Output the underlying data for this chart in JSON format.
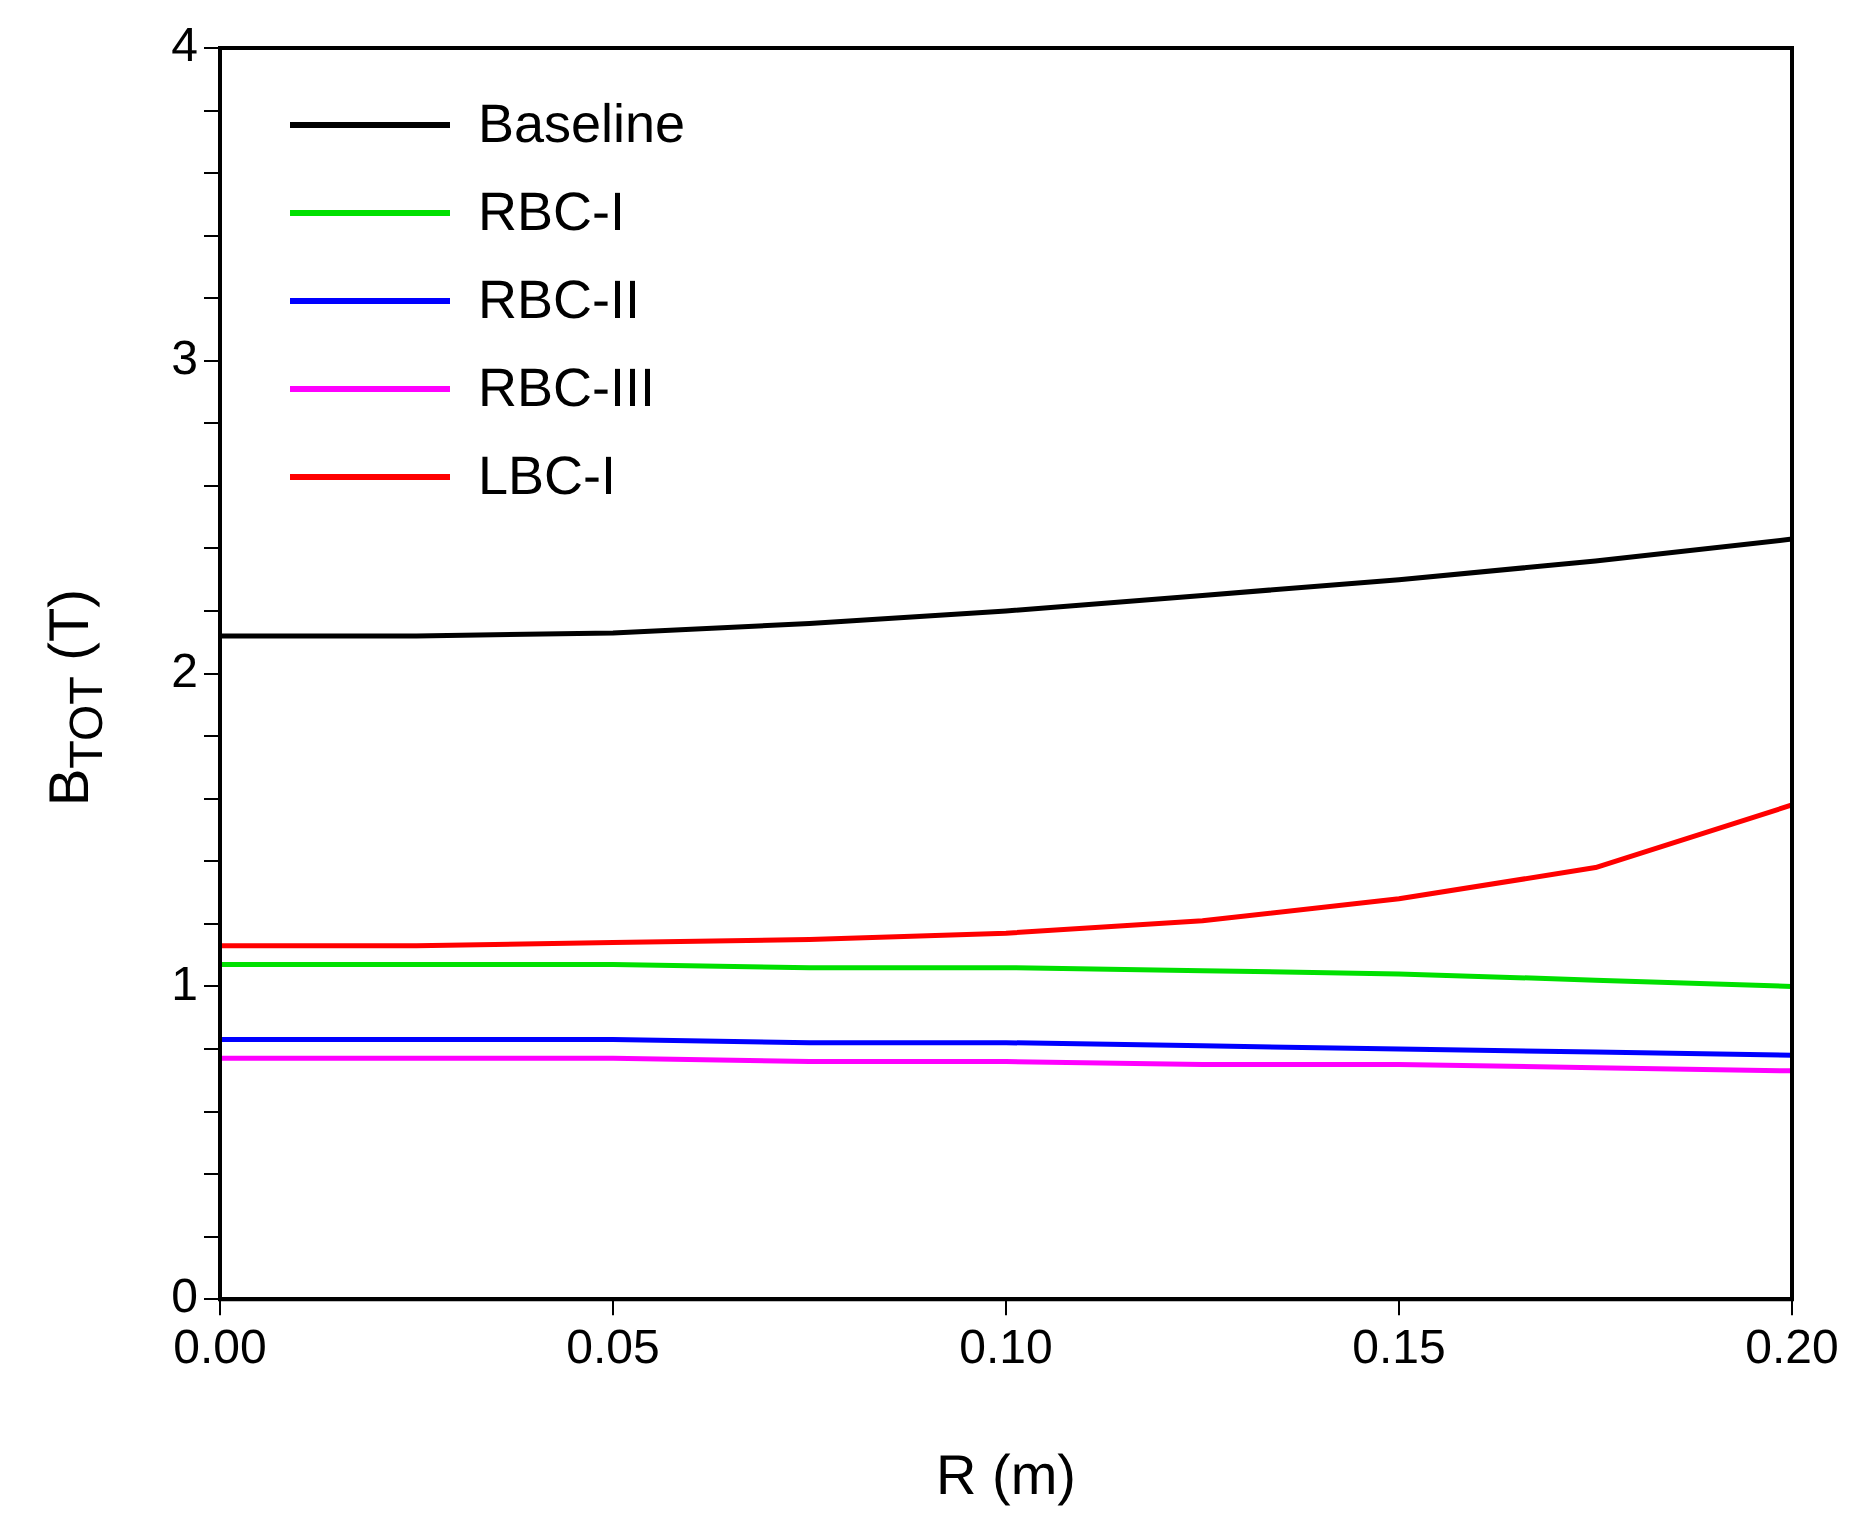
{
  "chart_data": {
    "type": "line",
    "xlabel": "R (m)",
    "ylabel": "B$_{TOT}$ (T)",
    "x": [
      0,
      0.025,
      0.05,
      0.075,
      0.1,
      0.125,
      0.15,
      0.175,
      0.2
    ],
    "series": [
      {
        "name": "Baseline",
        "color": "#000000",
        "values": [
          2.12,
          2.12,
          2.13,
          2.16,
          2.2,
          2.25,
          2.3,
          2.36,
          2.43
        ]
      },
      {
        "name": "RBC-I",
        "color": "#00e000",
        "values": [
          1.07,
          1.07,
          1.07,
          1.06,
          1.06,
          1.05,
          1.04,
          1.02,
          1.0
        ]
      },
      {
        "name": "RBC-II",
        "color": "#0000ff",
        "values": [
          0.83,
          0.83,
          0.83,
          0.82,
          0.82,
          0.81,
          0.8,
          0.79,
          0.78
        ]
      },
      {
        "name": "RBC-III",
        "color": "#ff00ff",
        "values": [
          0.77,
          0.77,
          0.77,
          0.76,
          0.76,
          0.75,
          0.75,
          0.74,
          0.73
        ]
      },
      {
        "name": "LBC-I",
        "color": "#ff0000",
        "values": [
          1.13,
          1.13,
          1.14,
          1.15,
          1.17,
          1.21,
          1.28,
          1.38,
          1.58
        ]
      }
    ],
    "xlim": [
      0,
      0.2
    ],
    "xticks": [
      {
        "value": 0,
        "label": "0.00"
      },
      {
        "value": 0.05,
        "label": "0.05"
      },
      {
        "value": 0.1,
        "label": "0.10"
      },
      {
        "value": 0.15,
        "label": "0.15"
      },
      {
        "value": 0.2,
        "label": "0.20"
      }
    ],
    "ylim": [
      0,
      4
    ],
    "yticks": [
      0,
      {
        "value": 0.2,
        "label": null
      },
      {
        "value": 0.4,
        "label": null
      },
      {
        "value": 0.6,
        "label": null
      },
      {
        "value": 0.8,
        "label": null
      },
      1,
      {
        "value": 1.2,
        "label": null
      },
      {
        "value": 1.4,
        "label": null
      },
      {
        "value": 1.6,
        "label": null
      },
      {
        "value": 1.8,
        "label": null
      },
      2,
      {
        "value": 2.2,
        "label": null
      },
      {
        "value": 2.4,
        "label": null
      },
      {
        "value": 2.6,
        "label": null
      },
      {
        "value": 2.8,
        "label": null
      },
      3,
      {
        "value": 3.2,
        "label": null
      },
      {
        "value": 3.4,
        "label": null
      },
      {
        "value": 3.6,
        "label": null
      },
      {
        "value": 3.8,
        "label": null
      },
      4
    ],
    "grid": false,
    "legend": "top left",
    "marker": "none",
    "line_style": "solid"
  }
}
